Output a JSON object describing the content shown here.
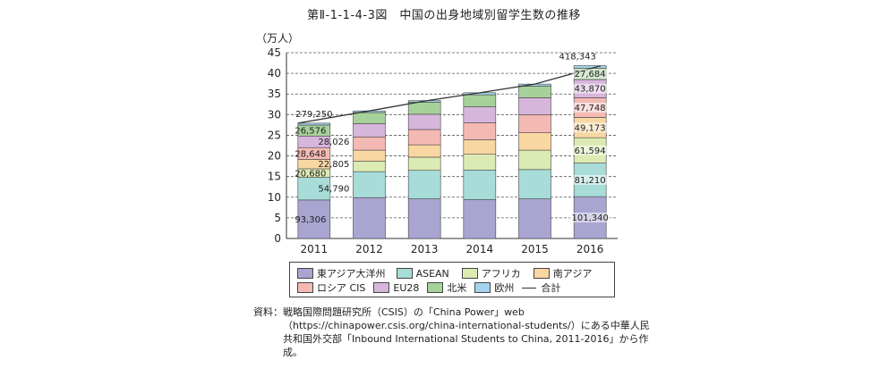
{
  "figure": {
    "title": "第Ⅱ-1-1-4-3図　中国の出身地域別留学生数の推移",
    "source_label": "資料：",
    "source_text": "戦略国際問題研究所（CSIS）の「China Power」web（https://chinapower.csis.org/china-international-students/）にある中華人民共和国外交部「Inbound International Students to China, 2011-2016」から作成。"
  },
  "chart_data": {
    "type": "bar",
    "stacked": true,
    "title": "第Ⅱ-1-1-4-3図　中国の出身地域別留学生数の推移",
    "ylabel": "（万人）",
    "xlabel": "",
    "ylim": [
      0,
      45
    ],
    "yticks": [
      0,
      5,
      10,
      15,
      20,
      25,
      30,
      35,
      40,
      45
    ],
    "categories": [
      "2011",
      "2012",
      "2013",
      "2014",
      "2015",
      "2016"
    ],
    "series": [
      {
        "name": "東アジア大洋州",
        "color": "#a9a5d1",
        "values": [
          9.33,
          9.9,
          9.6,
          9.4,
          9.6,
          10.13
        ]
      },
      {
        "name": "ASEAN",
        "color": "#a8dcd8",
        "values": [
          5.48,
          6.3,
          6.9,
          7.2,
          7.1,
          8.12
        ]
      },
      {
        "name": "アフリカ",
        "color": "#dcebb3",
        "values": [
          2.07,
          2.5,
          3.2,
          3.8,
          4.7,
          6.16
        ]
      },
      {
        "name": "南アジア",
        "color": "#f9d7a2",
        "values": [
          2.28,
          2.7,
          3.0,
          3.5,
          4.2,
          4.92
        ]
      },
      {
        "name": "ロシア CIS",
        "color": "#f4b9b3",
        "values": [
          2.86,
          3.2,
          3.7,
          4.1,
          4.4,
          4.77
        ]
      },
      {
        "name": "EU28",
        "color": "#d7b6dc",
        "values": [
          2.8,
          3.2,
          3.7,
          3.9,
          4.1,
          4.39
        ]
      },
      {
        "name": "北米",
        "color": "#a7d19b",
        "values": [
          2.66,
          2.7,
          2.9,
          2.9,
          2.8,
          2.77
        ]
      },
      {
        "name": "欧州",
        "color": "#a3d3ee",
        "values": [
          0.45,
          0.4,
          0.4,
          0.5,
          0.5,
          0.58
        ]
      }
    ],
    "total": {
      "name": "合計",
      "values": [
        27.93,
        30.9,
        33.3,
        35.3,
        37.4,
        41.83
      ]
    },
    "data_labels": [
      {
        "category": "2011",
        "series": "東アジア大洋州",
        "text": "93,306"
      },
      {
        "category": "2011",
        "series": "ASEAN",
        "text": "54,790"
      },
      {
        "category": "2011",
        "series": "アフリカ",
        "text": "20,680"
      },
      {
        "category": "2011",
        "series": "南アジア",
        "text": "22,805"
      },
      {
        "category": "2011",
        "series": "ロシア CIS",
        "text": "28,648"
      },
      {
        "category": "2011",
        "series": "EU28",
        "text": "28,026"
      },
      {
        "category": "2011",
        "series": "北米",
        "text": "26,576"
      },
      {
        "category": "2011",
        "series": "合計",
        "text": "279,250"
      },
      {
        "category": "2016",
        "series": "東アジア大洋州",
        "text": "101,340"
      },
      {
        "category": "2016",
        "series": "ASEAN",
        "text": "81,210"
      },
      {
        "category": "2016",
        "series": "アフリカ",
        "text": "61,594"
      },
      {
        "category": "2016",
        "series": "南アジア",
        "text": "49,173"
      },
      {
        "category": "2016",
        "series": "ロシア CIS",
        "text": "47,748"
      },
      {
        "category": "2016",
        "series": "EU28",
        "text": "43,870"
      },
      {
        "category": "2016",
        "series": "北米",
        "text": "27,684"
      },
      {
        "category": "2016",
        "series": "合計",
        "text": "418,343"
      }
    ],
    "gridlines": "dashed",
    "legend_position": "bottom"
  },
  "legend": {
    "rows": [
      [
        {
          "label": "東アジア大洋州",
          "color": "#a9a5d1"
        },
        {
          "label": "ASEAN",
          "color": "#a8dcd8"
        },
        {
          "label": "アフリカ",
          "color": "#dcebb3"
        },
        {
          "label": "南アジア",
          "color": "#f9d7a2"
        }
      ],
      [
        {
          "label": "ロシア CIS",
          "color": "#f4b9b3"
        },
        {
          "label": "EU28",
          "color": "#d7b6dc"
        },
        {
          "label": "北米",
          "color": "#a7d19b"
        },
        {
          "label": "欧州",
          "color": "#a3d3ee"
        },
        {
          "label": "合計",
          "line": true
        }
      ]
    ]
  }
}
